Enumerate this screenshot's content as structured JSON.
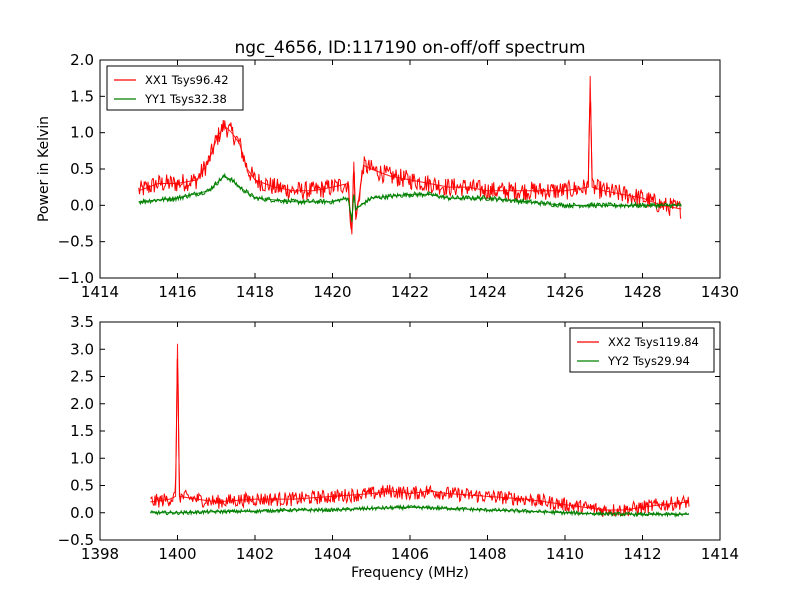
{
  "title": "ngc_4656, ID:117190 on-off/off spectrum",
  "xlabel": "Frequency (MHz)",
  "ylabel": "Power in Kelvin",
  "colors": {
    "xx": "#ff0000",
    "yy": "#008000"
  },
  "chart_data": [
    {
      "type": "line",
      "title": "ngc_4656, ID:117190 on-off/off spectrum",
      "xlabel": "",
      "ylabel": "Power in Kelvin",
      "xlim": [
        1414,
        1430
      ],
      "ylim": [
        -1.0,
        2.0
      ],
      "xticks": [
        1414,
        1416,
        1418,
        1420,
        1422,
        1424,
        1426,
        1428,
        1430
      ],
      "yticks": [
        -1.0,
        -0.5,
        0.0,
        0.5,
        1.0,
        1.5,
        2.0
      ],
      "xtick_labels": [
        "1414",
        "1416",
        "1418",
        "1420",
        "1422",
        "1424",
        "1426",
        "1428",
        "1430"
      ],
      "ytick_labels": [
        "−1.0",
        "−0.5",
        "0.0",
        "0.5",
        "1.0",
        "1.5",
        "2.0"
      ],
      "legend_position": "top-left",
      "series": [
        {
          "name": "XX1 Tsys96.42",
          "color": "#ff0000",
          "x": [
            1415.0,
            1415.5,
            1416.0,
            1416.5,
            1416.8,
            1417.0,
            1417.2,
            1417.4,
            1417.6,
            1417.8,
            1418.0,
            1418.5,
            1419.0,
            1419.5,
            1420.0,
            1420.4,
            1420.5,
            1420.55,
            1420.6,
            1420.8,
            1421.0,
            1421.5,
            1422.0,
            1422.5,
            1423.0,
            1423.5,
            1424.0,
            1424.5,
            1425.0,
            1425.5,
            1426.0,
            1426.6,
            1426.65,
            1426.7,
            1427.0,
            1427.5,
            1428.0,
            1428.5,
            1429.0
          ],
          "values": [
            0.2,
            0.3,
            0.3,
            0.35,
            0.6,
            0.9,
            1.1,
            1.0,
            0.85,
            0.5,
            0.35,
            0.25,
            0.2,
            0.2,
            0.25,
            0.3,
            -0.4,
            0.6,
            -0.2,
            0.55,
            0.5,
            0.4,
            0.35,
            0.3,
            0.25,
            0.25,
            0.2,
            0.2,
            0.2,
            0.2,
            0.2,
            0.25,
            1.78,
            0.25,
            0.2,
            0.15,
            0.1,
            0.0,
            -0.05
          ]
        },
        {
          "name": "YY1 Tsys32.38",
          "color": "#008000",
          "x": [
            1415.0,
            1416.0,
            1416.8,
            1417.0,
            1417.2,
            1417.4,
            1417.6,
            1418.0,
            1419.0,
            1420.0,
            1420.4,
            1420.5,
            1420.55,
            1420.6,
            1421.0,
            1422.0,
            1422.5,
            1423.0,
            1424.0,
            1425.0,
            1426.0,
            1427.0,
            1428.0,
            1429.0
          ],
          "values": [
            0.05,
            0.1,
            0.2,
            0.3,
            0.4,
            0.35,
            0.25,
            0.1,
            0.05,
            0.05,
            0.1,
            -0.2,
            0.15,
            -0.05,
            0.1,
            0.15,
            0.15,
            0.1,
            0.1,
            0.05,
            0.0,
            0.0,
            0.0,
            0.0
          ]
        }
      ]
    },
    {
      "type": "line",
      "title": "",
      "xlabel": "Frequency (MHz)",
      "ylabel": "",
      "xlim": [
        1398,
        1414
      ],
      "ylim": [
        -0.5,
        3.5
      ],
      "xticks": [
        1398,
        1400,
        1402,
        1404,
        1406,
        1408,
        1410,
        1412,
        1414
      ],
      "yticks": [
        -0.5,
        0.0,
        0.5,
        1.0,
        1.5,
        2.0,
        2.5,
        3.0,
        3.5
      ],
      "xtick_labels": [
        "1398",
        "1400",
        "1402",
        "1404",
        "1406",
        "1408",
        "1410",
        "1412",
        "1414"
      ],
      "ytick_labels": [
        "−0.5",
        "0.0",
        "0.5",
        "1.0",
        "1.5",
        "2.0",
        "2.5",
        "3.0",
        "3.5"
      ],
      "legend_position": "top-right",
      "series": [
        {
          "name": "XX2 Tsys119.84",
          "color": "#ff0000",
          "x": [
            1399.3,
            1399.8,
            1399.95,
            1400.0,
            1400.05,
            1400.5,
            1401.0,
            1402.0,
            1403.0,
            1404.0,
            1405.0,
            1405.5,
            1406.0,
            1406.5,
            1407.0,
            1408.0,
            1409.0,
            1410.0,
            1410.5,
            1411.0,
            1411.5,
            1412.0,
            1412.5,
            1413.2
          ],
          "values": [
            0.2,
            0.25,
            0.3,
            3.1,
            0.3,
            0.25,
            0.2,
            0.25,
            0.25,
            0.3,
            0.35,
            0.4,
            0.35,
            0.4,
            0.35,
            0.3,
            0.25,
            0.15,
            0.1,
            0.05,
            0.05,
            0.1,
            0.15,
            0.2
          ]
        },
        {
          "name": "YY2 Tsys29.94",
          "color": "#008000",
          "x": [
            1399.3,
            1400.0,
            1401.0,
            1402.0,
            1403.0,
            1404.0,
            1405.0,
            1406.0,
            1407.0,
            1408.0,
            1409.0,
            1410.0,
            1411.0,
            1412.0,
            1413.2
          ],
          "values": [
            0.0,
            0.0,
            0.02,
            0.03,
            0.05,
            0.05,
            0.08,
            0.1,
            0.08,
            0.05,
            0.03,
            0.0,
            -0.02,
            -0.03,
            -0.03
          ]
        }
      ]
    }
  ]
}
